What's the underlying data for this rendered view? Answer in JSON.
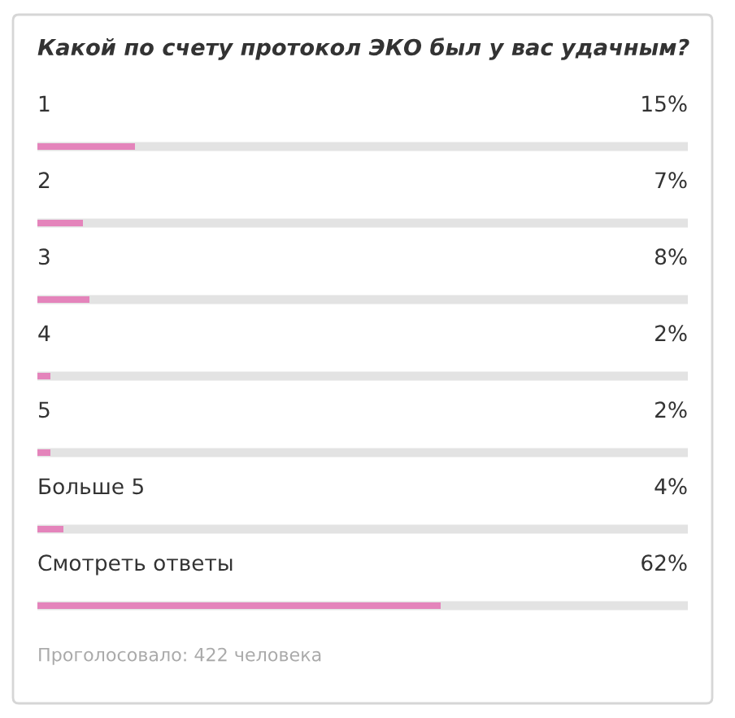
{
  "chart_data": {
    "type": "bar",
    "orientation": "horizontal",
    "title": "Какой по счету протокол ЭКО был у вас удачным?",
    "categories": [
      "1",
      "2",
      "3",
      "4",
      "5",
      "Больше 5",
      "Смотреть ответы"
    ],
    "values": [
      15,
      7,
      8,
      2,
      2,
      4,
      62
    ],
    "value_labels": [
      "15%",
      "7%",
      "8%",
      "2%",
      "2%",
      "4%",
      "62%"
    ],
    "color": "#e484bb",
    "xlim": [
      0,
      100
    ],
    "grid": "y",
    "annotations": [
      "Проголосовало: 422 человека"
    ]
  }
}
